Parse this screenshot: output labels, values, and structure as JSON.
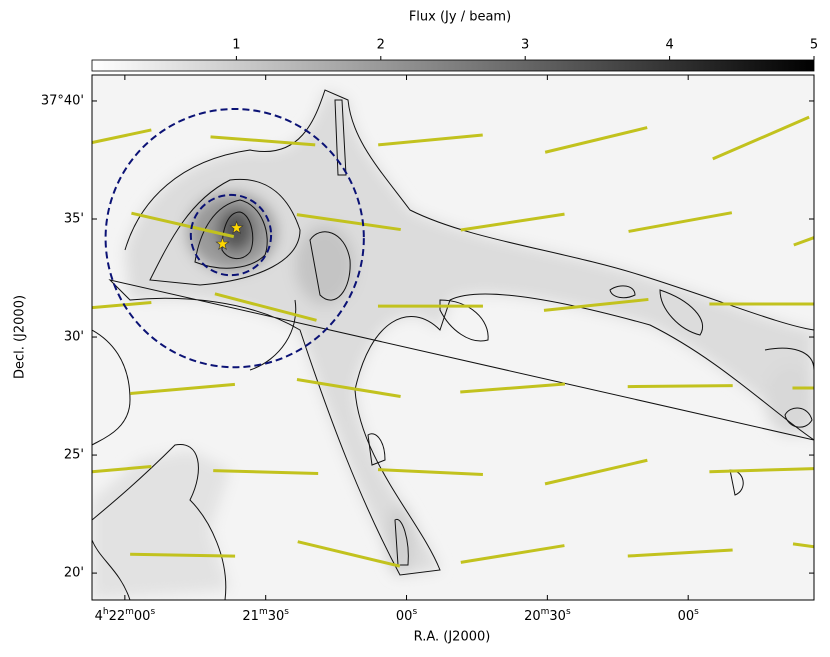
{
  "chart_data": {
    "type": "image",
    "xlabel": "R.A. (J2000)",
    "ylabel": "Decl. (J2000)",
    "xlim": [
      127.0,
      -26.8
    ],
    "ylim": [
      18.86,
      41.1
    ],
    "xticks": [
      {
        "value": 120,
        "label": "4h22m00s"
      },
      {
        "value": 90,
        "label": "21m30s"
      },
      {
        "value": 60,
        "label": "00s"
      },
      {
        "value": 30,
        "label": "20m30s"
      },
      {
        "value": 0,
        "label": "00s"
      }
    ],
    "yticks": [
      {
        "value": 40,
        "label": "37°40'"
      },
      {
        "value": 35,
        "label": "35'"
      },
      {
        "value": 30,
        "label": "30'"
      },
      {
        "value": 25,
        "label": "25'"
      },
      {
        "value": 20,
        "label": "20'"
      }
    ],
    "colorbar": {
      "label": "Flux (Jy / beam)",
      "lim": [
        0,
        5
      ],
      "ticks": [
        1,
        2,
        3,
        4,
        5
      ]
    },
    "vectors": {
      "color": "#c2c21e",
      "x": [
        125.3,
        90.6,
        54.9,
        19.6,
        -15.5,
        107.7,
        72.3,
        37.4,
        1.7,
        -33.0,
        125.5,
        90.0,
        54.9,
        19.6,
        -15.7,
        107.7,
        72.3,
        37.4,
        1.7,
        -33.4,
        125.5,
        90.0,
        54.9,
        19.6,
        -15.7,
        107.7,
        72.3,
        37.4,
        1.7,
        -33.4
      ],
      "y": [
        38.31,
        38.31,
        38.35,
        38.35,
        38.43,
        34.75,
        34.87,
        34.87,
        34.87,
        34.66,
        31.27,
        31.27,
        31.31,
        31.36,
        31.4,
        27.8,
        27.84,
        27.84,
        27.92,
        27.84,
        24.32,
        24.28,
        24.28,
        24.28,
        24.36,
        20.76,
        20.81,
        20.81,
        20.85,
        20.93
      ],
      "angle": [
        12,
        -4.4,
        5.4,
        13.6,
        23.4,
        -12.9,
        -8.2,
        8.7,
        10.3,
        20,
        5,
        -14.6,
        0,
        6,
        0,
        5,
        -9.3,
        4.4,
        0.5,
        0,
        5,
        -1.6,
        -2.7,
        13,
        1.7,
        -1,
        -13.5,
        9.2,
        3.3,
        -8
      ]
    },
    "circles": {
      "color": "#0b1275",
      "x": [
        96.6,
        97.4
      ],
      "y": [
        34.19,
        34.32
      ],
      "r": [
        5.47,
        1.7
      ]
    },
    "stars": {
      "color": "#ffd700",
      "x": [
        96.2,
        99.2
      ],
      "y": [
        34.62,
        33.94
      ]
    }
  }
}
